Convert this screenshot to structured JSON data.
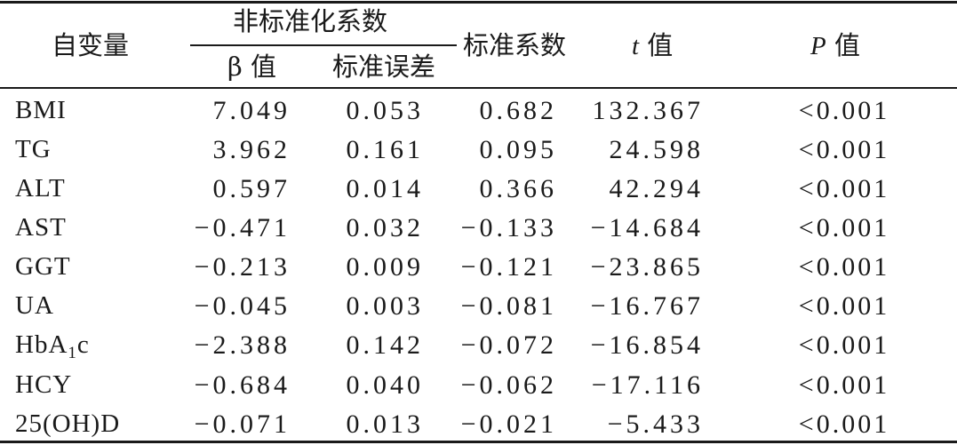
{
  "header": {
    "var_col": "自变量",
    "unstd_group": "非标准化系数",
    "beta_symbol": "β",
    "beta_suffix": "值",
    "se": "标准误差",
    "std_coef": "标准系数",
    "t_symbol": "t",
    "t_suffix": "值",
    "p_symbol": "P",
    "p_suffix": "值"
  },
  "rows": [
    {
      "var": "BMI",
      "beta": "7.049",
      "se": "0.053",
      "std": "0.682",
      "t": "132.367",
      "p": "<0.001"
    },
    {
      "var": "TG",
      "beta": "3.962",
      "se": "0.161",
      "std": "0.095",
      "t": "24.598",
      "p": "<0.001"
    },
    {
      "var": "ALT",
      "beta": "0.597",
      "se": "0.014",
      "std": "0.366",
      "t": "42.294",
      "p": "<0.001"
    },
    {
      "var": "AST",
      "beta": "−0.471",
      "se": "0.032",
      "std": "−0.133",
      "t": "−14.684",
      "p": "<0.001"
    },
    {
      "var": "GGT",
      "beta": "−0.213",
      "se": "0.009",
      "std": "−0.121",
      "t": "−23.865",
      "p": "<0.001"
    },
    {
      "var": "UA",
      "beta": "−0.045",
      "se": "0.003",
      "std": "−0.081",
      "t": "−16.767",
      "p": "<0.001"
    },
    {
      "var": "HbA",
      "var_sub": "1",
      "var_tail": "c",
      "beta": "−2.388",
      "se": "0.142",
      "std": "−0.072",
      "t": "−16.854",
      "p": "<0.001"
    },
    {
      "var": "HCY",
      "beta": "−0.684",
      "se": "0.040",
      "std": "−0.062",
      "t": "−17.116",
      "p": "<0.001"
    },
    {
      "var": "25(OH)D",
      "beta": "−0.071",
      "se": "0.013",
      "std": "−0.021",
      "t": "−5.433",
      "p": "<0.001"
    }
  ]
}
